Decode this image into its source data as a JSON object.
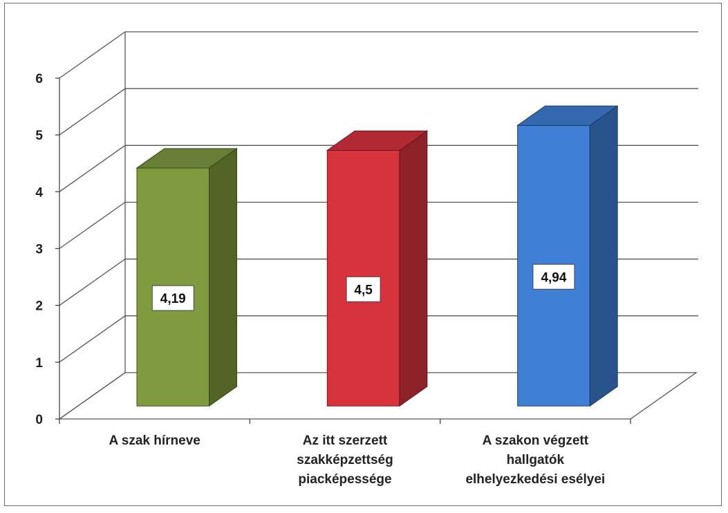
{
  "chart_data": {
    "type": "bar",
    "style": "3d",
    "categories": [
      [
        "A szak hírneve"
      ],
      [
        "Az itt szerzett",
        "szakképzettség",
        "piacképessége"
      ],
      [
        "A szakon végzett",
        "hallgatók",
        "elhelyezkedési esélyei"
      ]
    ],
    "values": [
      4.19,
      4.5,
      4.94
    ],
    "data_labels": [
      "4,19",
      "4,5",
      "4,94"
    ],
    "colors": [
      "#7f9a3f",
      "#d9323f",
      "#3f7fd6"
    ],
    "ylim": [
      0,
      6
    ],
    "yticks": [
      "0",
      "1",
      "2",
      "3",
      "4",
      "5",
      "6"
    ],
    "grid": true,
    "legend": "none",
    "title": "",
    "xlabel": "",
    "ylabel": ""
  }
}
